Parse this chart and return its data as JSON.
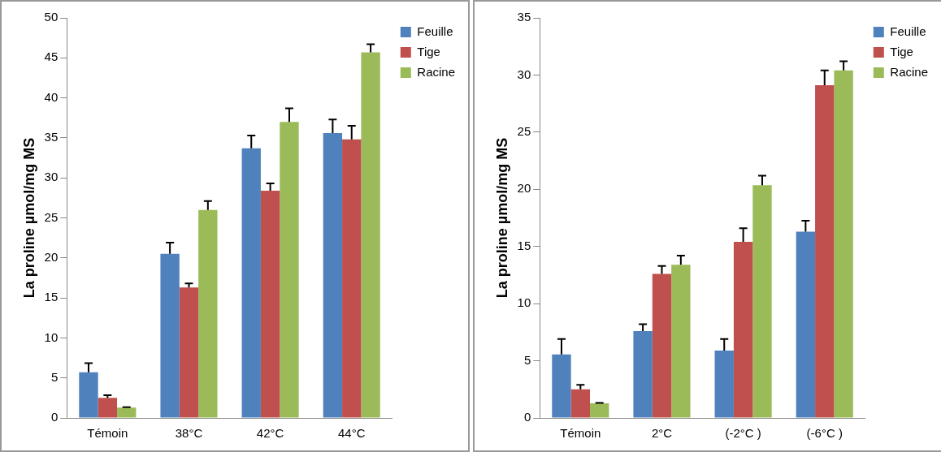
{
  "chart_data": [
    {
      "type": "bar",
      "ylabel": "La proline µmol/mg MS",
      "categories": [
        "Témoin",
        "38°C",
        "42°C",
        "44°C"
      ],
      "ylim": [
        0,
        50
      ],
      "yticks": [
        0,
        5,
        10,
        15,
        20,
        25,
        30,
        35,
        40,
        45,
        50
      ],
      "grid": false,
      "legend": "top right",
      "series": [
        {
          "name": "Feuille",
          "color": "#4f81bd",
          "values": [
            5.7,
            20.5,
            33.7,
            35.6
          ],
          "errors": [
            [
              5.7,
              6.85
            ],
            [
              20.5,
              21.9
            ],
            [
              33.7,
              35.3
            ],
            [
              35.6,
              37.3
            ]
          ]
        },
        {
          "name": "Tige",
          "color": "#c0504d",
          "values": [
            2.5,
            16.3,
            28.4,
            34.8
          ],
          "errors": [
            [
              2.5,
              2.85
            ],
            [
              16.3,
              16.8
            ],
            [
              28.4,
              29.3
            ],
            [
              34.8,
              36.5
            ]
          ]
        },
        {
          "name": "Racine",
          "color": "#9bbb59",
          "values": [
            1.3,
            26.0,
            37.0,
            45.7
          ],
          "errors": [
            [
              1.3,
              1.35
            ],
            [
              26.0,
              27.1
            ],
            [
              37.0,
              38.7
            ],
            [
              45.7,
              46.7
            ]
          ]
        }
      ]
    },
    {
      "type": "bar",
      "ylabel": "La proline µmol/mg MS",
      "categories": [
        "Témoin",
        "2°C",
        "(-2°C )",
        "(-6°C )"
      ],
      "ylim": [
        0,
        35
      ],
      "yticks": [
        0,
        5,
        10,
        15,
        20,
        25,
        30,
        35
      ],
      "grid": false,
      "legend": "top right",
      "series": [
        {
          "name": "Feuille",
          "color": "#4f81bd",
          "values": [
            5.55,
            7.6,
            5.9,
            16.3
          ],
          "errors": [
            [
              5.55,
              6.9
            ],
            [
              7.6,
              8.2
            ],
            [
              5.9,
              6.9
            ],
            [
              16.3,
              17.25
            ]
          ]
        },
        {
          "name": "Tige",
          "color": "#c0504d",
          "values": [
            2.5,
            12.6,
            15.4,
            29.1
          ],
          "errors": [
            [
              2.5,
              2.9
            ],
            [
              12.6,
              13.3
            ],
            [
              15.4,
              16.6
            ],
            [
              29.1,
              30.4
            ]
          ]
        },
        {
          "name": "Racine",
          "color": "#9bbb59",
          "values": [
            1.27,
            13.4,
            20.35,
            30.4
          ],
          "errors": [
            [
              1.27,
              1.32
            ],
            [
              13.4,
              14.2
            ],
            [
              20.35,
              21.2
            ],
            [
              30.4,
              31.2
            ]
          ]
        }
      ]
    }
  ]
}
